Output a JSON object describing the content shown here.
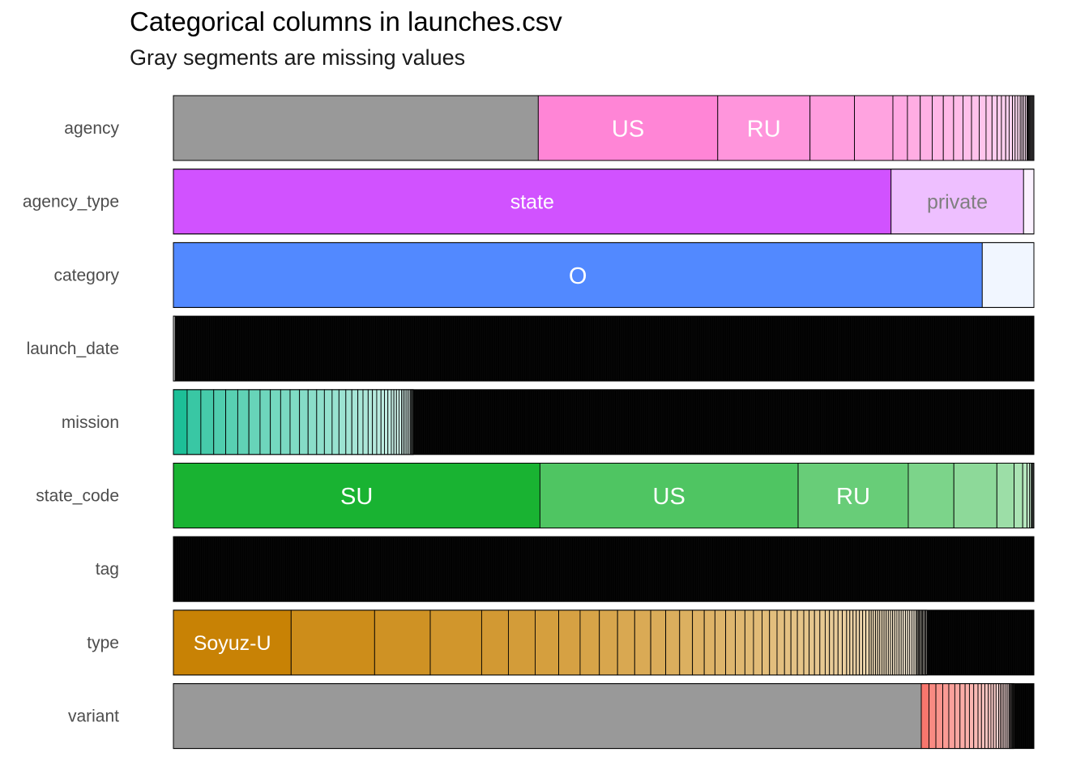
{
  "chart_data": {
    "type": "bar",
    "title": "Categorical columns in launches.csv",
    "subtitle": "Gray segments are missing values",
    "missing_color": "#999999",
    "rows": [
      {
        "name": "agency",
        "base_color": "#FF85D6",
        "segments": [
          {
            "missing": true,
            "value": 42.7
          },
          {
            "label": "US",
            "value": 21.0
          },
          {
            "label": "RU",
            "value": 10.8
          },
          {
            "value": 5.2
          },
          {
            "value": 4.5
          },
          {
            "value": 1.7
          },
          {
            "value": 1.5
          },
          {
            "value": 1.4
          },
          {
            "value": 1.3
          },
          {
            "value": 1.2
          },
          {
            "value": 1.1
          },
          {
            "value": 1.0
          },
          {
            "value": 0.9
          },
          {
            "value": 0.8
          },
          {
            "value": 0.7
          },
          {
            "value": 0.6
          },
          {
            "value": 0.5
          },
          {
            "value": 0.5
          },
          {
            "value": 0.4
          },
          {
            "value": 0.4
          },
          {
            "value": 0.3
          },
          {
            "value": 0.3
          },
          {
            "value": 0.3
          },
          {
            "value": 0.2
          },
          {
            "value": 0.2
          },
          {
            "value": 0.2
          },
          {
            "value": 0.2
          },
          {
            "value": 0.1
          },
          {
            "value": 0.1
          },
          {
            "value": 0.1
          },
          {
            "value": 0.1
          },
          {
            "value": 0.1
          },
          {
            "value": 0.1
          },
          {
            "value": 0.1
          },
          {
            "value": 0.1
          }
        ]
      },
      {
        "name": "agency_type",
        "base_color": "#D152FF",
        "segments": [
          {
            "label": "state",
            "value": 83.4
          },
          {
            "label": "private",
            "value": 15.4
          },
          {
            "value": 1.2
          }
        ]
      },
      {
        "name": "category",
        "base_color": "#5289FF",
        "segments": [
          {
            "label": "O",
            "value": 94.0
          },
          {
            "value": 6.0
          }
        ]
      },
      {
        "name": "launch_date",
        "base_color": "#000000",
        "segments": [
          {
            "value": 0.2,
            "color": "#dddddd"
          },
          {
            "value": 99.8,
            "dense": true
          }
        ]
      },
      {
        "name": "mission",
        "base_color": "#1DBF97",
        "segments": [
          {
            "value": 1.6
          },
          {
            "value": 1.6
          },
          {
            "value": 1.5
          },
          {
            "value": 1.4
          },
          {
            "value": 1.4
          },
          {
            "value": 1.3
          },
          {
            "value": 1.3
          },
          {
            "value": 1.2
          },
          {
            "value": 1.2
          },
          {
            "value": 1.1
          },
          {
            "value": 1.1
          },
          {
            "value": 1.0
          },
          {
            "value": 1.0
          },
          {
            "value": 0.9
          },
          {
            "value": 0.9
          },
          {
            "value": 0.8
          },
          {
            "value": 0.8
          },
          {
            "value": 0.7
          },
          {
            "value": 0.7
          },
          {
            "value": 0.6
          },
          {
            "value": 0.6
          },
          {
            "value": 0.5
          },
          {
            "value": 0.5
          },
          {
            "value": 0.5
          },
          {
            "value": 0.4
          },
          {
            "value": 0.4
          },
          {
            "value": 0.4
          },
          {
            "value": 0.3
          },
          {
            "value": 0.3
          },
          {
            "value": 0.3
          },
          {
            "value": 0.3
          },
          {
            "value": 0.2
          },
          {
            "value": 0.2
          },
          {
            "value": 0.2
          },
          {
            "value": 0.2
          },
          {
            "value": 0.2
          },
          {
            "value": 0.1
          },
          {
            "value": 0.1
          },
          {
            "value": 0.1
          },
          {
            "value": 0.1
          },
          {
            "value": 72.3,
            "dense": true
          }
        ]
      },
      {
        "name": "state_code",
        "base_color": "#19B332",
        "segments": [
          {
            "label": "SU",
            "value": 42.6
          },
          {
            "label": "US",
            "value": 30.0
          },
          {
            "label": "RU",
            "value": 12.8
          },
          {
            "value": 5.3
          },
          {
            "value": 5.0
          },
          {
            "value": 2.0
          },
          {
            "value": 1.0
          },
          {
            "value": 0.5
          },
          {
            "value": 0.3
          },
          {
            "value": 0.2
          },
          {
            "value": 0.1
          },
          {
            "value": 0.1
          },
          {
            "value": 0.1
          }
        ]
      },
      {
        "name": "tag",
        "base_color": "#000000",
        "segments": [
          {
            "value": 100,
            "dense": true
          }
        ]
      },
      {
        "name": "type",
        "base_color": "#C88205",
        "segments": [
          {
            "label": "Soyuz-U",
            "value": 11.0
          },
          {
            "value": 7.8
          },
          {
            "value": 5.2
          },
          {
            "value": 4.8
          },
          {
            "value": 2.5
          },
          {
            "value": 2.5
          },
          {
            "value": 2.2
          },
          {
            "value": 2.0
          },
          {
            "value": 1.8
          },
          {
            "value": 1.7
          },
          {
            "value": 1.6
          },
          {
            "value": 1.5
          },
          {
            "value": 1.4
          },
          {
            "value": 1.3
          },
          {
            "value": 1.2
          },
          {
            "value": 1.1
          },
          {
            "value": 1.0
          },
          {
            "value": 1.0
          },
          {
            "value": 0.9
          },
          {
            "value": 0.9
          },
          {
            "value": 0.8
          },
          {
            "value": 0.8
          },
          {
            "value": 0.7
          },
          {
            "value": 0.7
          },
          {
            "value": 0.7
          },
          {
            "value": 0.6
          },
          {
            "value": 0.6
          },
          {
            "value": 0.6
          },
          {
            "value": 0.5
          },
          {
            "value": 0.5
          },
          {
            "value": 0.5
          },
          {
            "value": 0.5
          },
          {
            "value": 0.4
          },
          {
            "value": 0.4
          },
          {
            "value": 0.4
          },
          {
            "value": 0.4
          },
          {
            "value": 0.4
          },
          {
            "value": 0.3
          },
          {
            "value": 0.3
          },
          {
            "value": 0.3
          },
          {
            "value": 0.3
          },
          {
            "value": 0.3
          },
          {
            "value": 0.3
          },
          {
            "value": 0.3
          },
          {
            "value": 0.2
          },
          {
            "value": 0.2
          },
          {
            "value": 0.2
          },
          {
            "value": 0.2
          },
          {
            "value": 0.2
          },
          {
            "value": 0.2
          },
          {
            "value": 0.2
          },
          {
            "value": 0.2
          },
          {
            "value": 0.2
          },
          {
            "value": 0.2
          },
          {
            "value": 0.2
          },
          {
            "value": 0.2
          },
          {
            "value": 0.2
          },
          {
            "value": 0.2
          },
          {
            "value": 0.2
          },
          {
            "value": 0.2
          },
          {
            "value": 0.2
          },
          {
            "value": 0.2
          },
          {
            "value": 0.2
          },
          {
            "value": 0.2
          },
          {
            "value": 0.2
          },
          {
            "value": 0.2
          },
          {
            "value": 0.1
          },
          {
            "value": 0.1
          },
          {
            "value": 0.1
          },
          {
            "value": 0.1
          },
          {
            "value": 0.1
          },
          {
            "value": 0.1
          },
          {
            "value": 0.1
          },
          {
            "value": 0.1
          },
          {
            "value": 0.1
          },
          {
            "value": 0.1
          },
          {
            "value": 10.0,
            "dense": true
          }
        ]
      },
      {
        "name": "variant",
        "base_color": "#F8766D",
        "segments": [
          {
            "missing": true,
            "value": 87.0
          },
          {
            "value": 0.9
          },
          {
            "value": 0.8
          },
          {
            "value": 0.8
          },
          {
            "value": 0.7
          },
          {
            "value": 0.7
          },
          {
            "value": 0.6
          },
          {
            "value": 0.6
          },
          {
            "value": 0.5
          },
          {
            "value": 0.5
          },
          {
            "value": 0.5
          },
          {
            "value": 0.4
          },
          {
            "value": 0.4
          },
          {
            "value": 0.4
          },
          {
            "value": 0.3
          },
          {
            "value": 0.3
          },
          {
            "value": 0.3
          },
          {
            "value": 0.3
          },
          {
            "value": 0.2
          },
          {
            "value": 0.2
          },
          {
            "value": 0.2
          },
          {
            "value": 0.2
          },
          {
            "value": 0.2
          },
          {
            "value": 0.2
          },
          {
            "value": 0.1
          },
          {
            "value": 0.1
          },
          {
            "value": 0.1
          },
          {
            "value": 0.1
          },
          {
            "value": 0.1
          },
          {
            "value": 0.1
          },
          {
            "value": 2.3,
            "dense": true
          }
        ]
      }
    ]
  }
}
